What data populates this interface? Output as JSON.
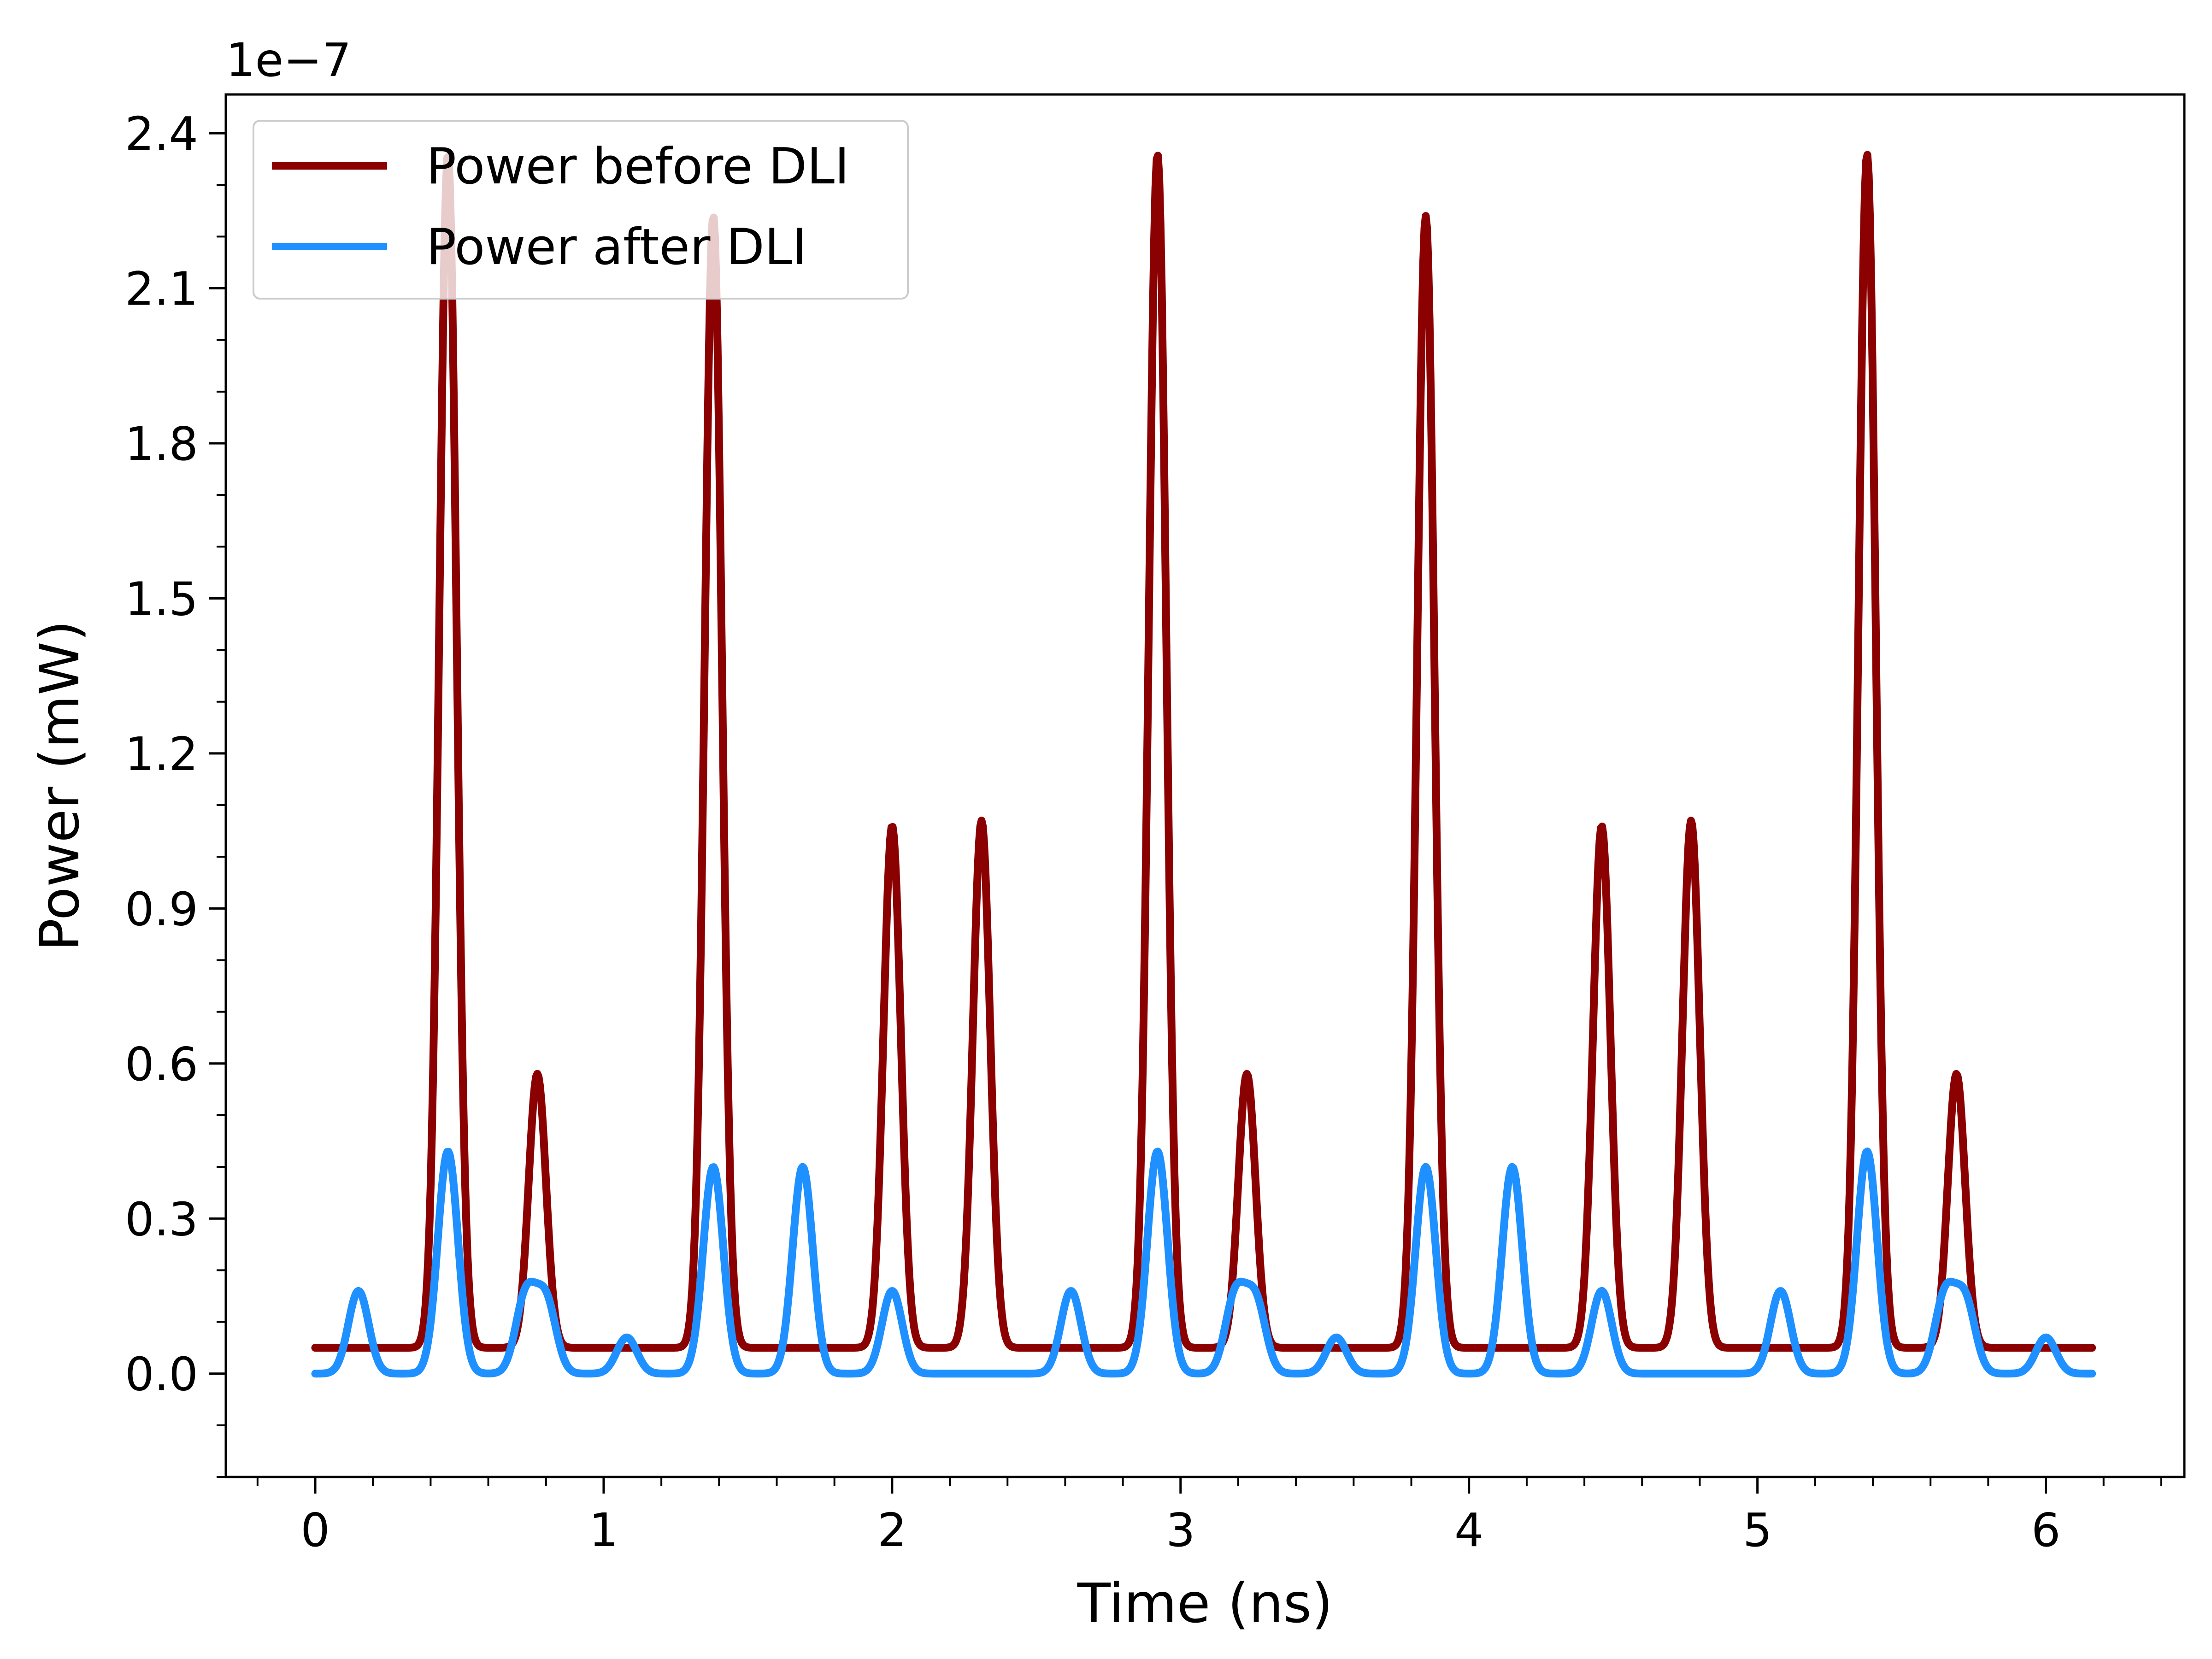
{
  "chart_data": {
    "type": "line",
    "title": "",
    "xlabel": "Time (ns)",
    "ylabel": "Power (mW)",
    "y_offset_label": "1e−7",
    "xlim": [
      -0.31,
      6.48
    ],
    "ylim": [
      -0.2,
      2.475
    ],
    "x_ticks": [
      0,
      1,
      2,
      3,
      4,
      5,
      6
    ],
    "x_tick_labels": [
      "0",
      "1",
      "2",
      "3",
      "4",
      "5",
      "6"
    ],
    "y_ticks": [
      0.0,
      0.3,
      0.6,
      0.9,
      1.2,
      1.5,
      1.8,
      2.1,
      2.4
    ],
    "y_tick_labels": [
      "0.0",
      "0.3",
      "0.6",
      "0.9",
      "1.2",
      "1.5",
      "1.8",
      "2.1",
      "2.4"
    ],
    "x_minor_step": 0.2,
    "y_minor_step": 0.1,
    "grid": false,
    "legend_position": "top-left",
    "series": [
      {
        "name": "Power before DLI",
        "color": "#8B0000",
        "baseline": 0.05,
        "peak_width": 0.03,
        "x_range": [
          0,
          6.16
        ],
        "peaks": [
          {
            "x": 0.46,
            "y": 2.36
          },
          {
            "x": 0.77,
            "y": 0.58
          },
          {
            "x": 1.38,
            "y": 2.24
          },
          {
            "x": 2.0,
            "y": 1.06
          },
          {
            "x": 2.31,
            "y": 1.07
          },
          {
            "x": 2.92,
            "y": 2.36
          },
          {
            "x": 3.23,
            "y": 0.58
          },
          {
            "x": 3.85,
            "y": 2.24
          },
          {
            "x": 4.46,
            "y": 1.06
          },
          {
            "x": 4.77,
            "y": 1.07
          },
          {
            "x": 5.38,
            "y": 2.36
          },
          {
            "x": 5.69,
            "y": 0.58
          }
        ]
      },
      {
        "name": "Power after DLI",
        "color": "#1E90FF",
        "baseline": 0.0,
        "peak_width": 0.035,
        "x_range": [
          0,
          6.16
        ],
        "peaks": [
          {
            "x": 0.15,
            "y": 0.16
          },
          {
            "x": 0.46,
            "y": 0.43
          },
          {
            "x": 0.73,
            "y": 0.15
          },
          {
            "x": 0.8,
            "y": 0.14
          },
          {
            "x": 1.08,
            "y": 0.07
          },
          {
            "x": 1.38,
            "y": 0.4
          },
          {
            "x": 1.69,
            "y": 0.4
          },
          {
            "x": 2.0,
            "y": 0.16
          },
          {
            "x": 2.62,
            "y": 0.16
          },
          {
            "x": 2.92,
            "y": 0.43
          },
          {
            "x": 3.19,
            "y": 0.15
          },
          {
            "x": 3.26,
            "y": 0.14
          },
          {
            "x": 3.54,
            "y": 0.07
          },
          {
            "x": 3.85,
            "y": 0.4
          },
          {
            "x": 4.15,
            "y": 0.4
          },
          {
            "x": 4.46,
            "y": 0.16
          },
          {
            "x": 5.08,
            "y": 0.16
          },
          {
            "x": 5.38,
            "y": 0.43
          },
          {
            "x": 5.65,
            "y": 0.15
          },
          {
            "x": 5.72,
            "y": 0.14
          },
          {
            "x": 6.0,
            "y": 0.07
          }
        ]
      }
    ]
  }
}
